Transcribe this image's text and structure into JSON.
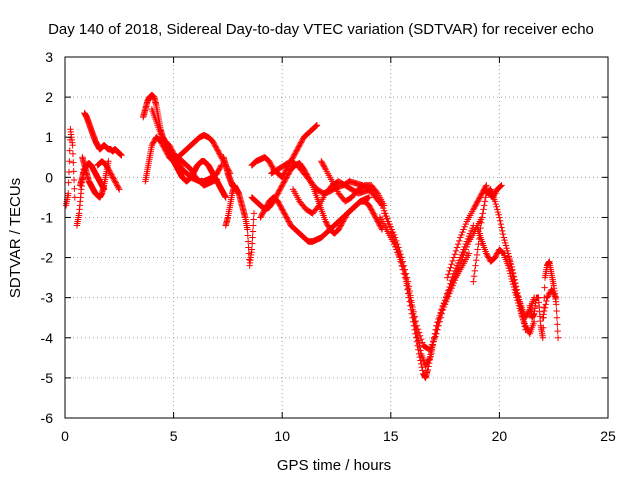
{
  "chart_data": {
    "type": "scatter",
    "title": "Day 140 of 2018, Sidereal Day-to-day VTEC variation (SDTVAR) for receiver echo",
    "xlabel": "GPS time / hours",
    "ylabel": "SDTVAR / TECUs",
    "xlim": [
      0,
      25
    ],
    "ylim": [
      -6,
      3
    ],
    "xticks": [
      0,
      5,
      10,
      15,
      20,
      25
    ],
    "yticks": [
      -6,
      -5,
      -4,
      -3,
      -2,
      -1,
      0,
      1,
      2,
      3
    ],
    "grid": true,
    "marker": "+",
    "color": "#ff0000",
    "series": [
      {
        "name": "SDTVAR",
        "approximate": true,
        "tracks": [
          {
            "x": [
              0.05,
              0.15,
              0.25,
              0.35,
              0.45
            ],
            "y": [
              -0.7,
              -0.4,
              1.2,
              0.8,
              -0.5
            ]
          },
          {
            "x": [
              0.55,
              0.65,
              0.75,
              0.85
            ],
            "y": [
              -1.2,
              -0.9,
              -0.3,
              0.2
            ]
          },
          {
            "x": [
              0.9,
              1.0,
              1.1,
              1.2,
              1.3,
              1.4,
              1.5,
              1.6,
              1.7,
              1.8,
              1.9,
              2.0,
              2.1,
              2.2,
              2.3,
              2.4,
              2.5,
              2.6
            ],
            "y": [
              1.6,
              1.5,
              1.35,
              1.2,
              1.05,
              0.9,
              0.8,
              0.7,
              0.75,
              0.8,
              0.75,
              0.7,
              0.7,
              0.65,
              0.7,
              0.65,
              0.6,
              0.55
            ]
          },
          {
            "x": [
              0.8,
              0.9,
              1.0,
              1.1,
              1.2,
              1.3,
              1.4,
              1.5,
              1.6,
              1.7,
              1.8,
              1.9,
              2.0
            ],
            "y": [
              0.5,
              0.3,
              0.1,
              -0.1,
              -0.2,
              -0.3,
              -0.4,
              -0.45,
              -0.5,
              -0.4,
              -0.2,
              0.1,
              0.4
            ]
          },
          {
            "x": [
              0.7,
              0.8,
              0.9,
              1.0,
              1.1,
              1.2,
              1.3,
              1.4,
              1.5,
              1.6,
              1.7,
              1.8
            ],
            "y": [
              -0.2,
              0.0,
              0.2,
              0.3,
              0.35,
              0.3,
              0.2,
              0.1,
              0.0,
              -0.1,
              -0.2,
              -0.3
            ]
          },
          {
            "x": [
              1.5,
              1.7,
              1.9,
              2.1,
              2.3,
              2.5
            ],
            "y": [
              0.3,
              0.4,
              0.3,
              0.1,
              -0.1,
              -0.3
            ]
          },
          {
            "x": [
              3.6,
              3.7,
              3.8,
              3.9,
              4.0,
              4.1,
              4.2,
              4.3,
              4.4,
              4.5,
              4.6,
              4.7,
              4.8,
              4.9,
              5.0,
              5.1,
              5.2,
              5.3,
              5.4,
              5.5,
              5.6,
              5.7,
              5.8,
              5.9,
              6.0,
              6.1,
              6.2,
              6.3,
              6.4,
              6.5,
              6.6,
              6.7,
              6.8,
              6.9,
              7.0,
              7.1,
              7.2,
              7.3,
              7.4
            ],
            "y": [
              1.5,
              1.7,
              1.9,
              2.0,
              2.05,
              2.0,
              1.8,
              1.5,
              1.2,
              1.0,
              0.9,
              0.7,
              0.6,
              0.5,
              0.4,
              0.3,
              0.2,
              0.1,
              0.0,
              -0.05,
              -0.1,
              -0.05,
              0.0,
              0.1,
              0.2,
              0.3,
              0.35,
              0.4,
              0.4,
              0.35,
              0.3,
              0.2,
              0.1,
              0.0,
              -0.1,
              -0.2,
              -0.3,
              -0.4,
              -0.5
            ]
          },
          {
            "x": [
              3.7,
              3.8,
              3.9,
              4.0,
              4.2,
              4.4,
              4.6,
              4.8,
              5.0,
              5.2,
              5.4,
              5.6,
              5.8,
              6.0,
              6.2,
              6.4,
              6.6,
              6.8,
              7.0,
              7.2,
              7.4,
              7.6
            ],
            "y": [
              -0.1,
              0.2,
              0.5,
              0.8,
              1.0,
              0.9,
              0.7,
              0.5,
              0.4,
              0.5,
              0.6,
              0.7,
              0.8,
              0.9,
              1.0,
              1.05,
              1.0,
              0.9,
              0.7,
              0.5,
              0.3,
              0.1
            ]
          },
          {
            "x": [
              4.6,
              4.8,
              5.0,
              5.2,
              5.4,
              5.6,
              5.8,
              6.0,
              6.2,
              6.4,
              6.6,
              6.8,
              7.0,
              7.2
            ],
            "y": [
              0.9,
              0.8,
              0.6,
              0.4,
              0.2,
              0.1,
              0.0,
              -0.05,
              -0.1,
              -0.1,
              -0.05,
              0.0,
              0.1,
              0.3
            ]
          },
          {
            "x": [
              4.0,
              4.2,
              4.4,
              4.6,
              4.8,
              5.0,
              5.2,
              5.4,
              5.6,
              5.8,
              6.0,
              6.2,
              6.4,
              6.6,
              6.8,
              7.0
            ],
            "y": [
              1.7,
              1.4,
              1.1,
              0.9,
              0.7,
              0.55,
              0.5,
              0.4,
              0.3,
              0.2,
              0.0,
              -0.1,
              -0.2,
              -0.15,
              -0.1,
              -0.05
            ]
          },
          {
            "x": [
              7.4,
              7.5,
              7.6,
              7.7,
              7.8,
              7.9,
              8.0,
              8.1,
              8.2,
              8.3,
              8.4,
              8.5,
              8.6,
              8.7
            ],
            "y": [
              -1.2,
              -1.0,
              -0.7,
              -0.4,
              -0.2,
              -0.3,
              -0.4,
              -0.6,
              -0.8,
              -1.0,
              -1.3,
              -2.2,
              -1.8,
              -0.9
            ]
          },
          {
            "x": [
              7.3,
              7.4,
              7.5,
              7.6,
              7.7,
              7.8
            ],
            "y": [
              0.5,
              0.3,
              0.1,
              -0.05,
              -0.2,
              -0.25
            ]
          },
          {
            "x": [
              8.6,
              8.8,
              9.0,
              9.2,
              9.4,
              9.6,
              9.8,
              10.0,
              10.2,
              10.4,
              10.6,
              10.8,
              11.0,
              11.2,
              11.4,
              11.6
            ],
            "y": [
              0.3,
              0.4,
              0.45,
              0.5,
              0.4,
              0.2,
              0.1,
              0.0,
              0.2,
              0.4,
              0.6,
              0.8,
              1.0,
              1.1,
              1.2,
              1.3
            ]
          },
          {
            "x": [
              8.6,
              8.8,
              9.0,
              9.2,
              9.4,
              9.6,
              9.8,
              10.0,
              10.2,
              10.4,
              10.6,
              10.8,
              11.0,
              11.2,
              11.4,
              11.6,
              11.8,
              12.0,
              12.2,
              12.4,
              12.6,
              12.8,
              13.0,
              13.2,
              13.4,
              13.6,
              13.8,
              14.0
            ],
            "y": [
              -0.5,
              -0.6,
              -0.7,
              -0.8,
              -0.75,
              -0.6,
              -0.4,
              -0.2,
              0.0,
              0.2,
              0.3,
              0.35,
              0.2,
              0.0,
              -0.2,
              -0.5,
              -0.8,
              -1.1,
              -1.3,
              -1.4,
              -1.3,
              -1.1,
              -0.9,
              -0.8,
              -0.7,
              -0.6,
              -0.55,
              -0.5
            ]
          },
          {
            "x": [
              9.0,
              9.2,
              9.4,
              9.6,
              9.8,
              10.0,
              10.2,
              10.4,
              10.6,
              10.8,
              11.0,
              11.2,
              11.4,
              11.6,
              11.8,
              12.0,
              12.2,
              12.4,
              12.6,
              12.8,
              13.0,
              13.2,
              13.4,
              13.6,
              13.8,
              14.0,
              14.2,
              14.4,
              14.6
            ],
            "y": [
              -1.0,
              -0.8,
              -0.6,
              -0.5,
              -0.6,
              -0.8,
              -1.0,
              -1.2,
              -1.3,
              -1.4,
              -1.5,
              -1.6,
              -1.6,
              -1.55,
              -1.5,
              -1.4,
              -1.3,
              -1.2,
              -1.1,
              -1.0,
              -0.9,
              -0.8,
              -0.7,
              -0.6,
              -0.6,
              -0.7,
              -0.9,
              -1.1,
              -1.3
            ]
          },
          {
            "x": [
              9.5,
              9.8,
              10.1,
              10.4,
              10.7,
              11.0,
              11.3,
              11.6,
              11.9,
              12.2,
              12.5,
              12.8,
              13.1,
              13.4,
              13.7,
              14.0,
              14.3,
              14.6
            ],
            "y": [
              0.1,
              0.2,
              0.3,
              0.4,
              0.3,
              0.1,
              -0.1,
              -0.3,
              -0.4,
              -0.35,
              -0.25,
              -0.2,
              -0.1,
              -0.15,
              -0.2,
              -0.3,
              -0.5,
              -0.7
            ]
          },
          {
            "x": [
              11.8,
              12.0,
              12.3,
              12.6,
              12.9,
              13.2,
              13.5,
              13.8,
              14.1,
              14.4,
              14.7
            ],
            "y": [
              0.4,
              0.2,
              -0.1,
              -0.4,
              -0.6,
              -0.5,
              -0.3,
              -0.2,
              -0.2,
              -0.4,
              -0.7
            ]
          },
          {
            "x": [
              10.5,
              10.8,
              11.1,
              11.4,
              11.7,
              12.0,
              12.3,
              12.6,
              12.9,
              13.2,
              13.5,
              13.8,
              14.1
            ],
            "y": [
              -0.3,
              -0.6,
              -0.8,
              -0.9,
              -0.7,
              -0.4,
              -0.2,
              -0.1,
              -0.2,
              -0.3,
              -0.4,
              -0.35,
              -0.3
            ]
          },
          {
            "x": [
              14.5,
              14.8,
              15.1,
              15.4,
              15.7,
              15.9,
              16.1,
              16.3,
              16.5,
              16.6,
              16.7,
              16.9,
              17.1,
              17.4,
              17.7,
              18.0,
              18.3,
              18.6,
              18.9,
              19.2
            ],
            "y": [
              -1.0,
              -1.3,
              -1.6,
              -2.0,
              -2.6,
              -3.2,
              -3.8,
              -4.4,
              -4.9,
              -5.0,
              -4.8,
              -4.3,
              -3.7,
              -3.2,
              -2.8,
              -2.4,
              -2.0,
              -1.6,
              -1.3,
              -1.0
            ]
          },
          {
            "x": [
              14.6,
              14.9,
              15.2,
              15.5,
              15.8,
              16.0,
              16.2,
              16.4,
              16.6,
              16.8,
              17.0,
              17.3,
              17.6,
              17.9,
              18.2,
              18.5,
              18.8
            ],
            "y": [
              -0.7,
              -1.1,
              -1.5,
              -2.0,
              -2.6,
              -3.3,
              -3.9,
              -4.4,
              -4.7,
              -4.5,
              -4.0,
              -3.4,
              -2.9,
              -2.4,
              -2.0,
              -1.6,
              -1.2
            ]
          },
          {
            "x": [
              14.7,
              15.0,
              15.3,
              15.6,
              15.9,
              16.2,
              16.5,
              16.8,
              17.1,
              17.4,
              17.7,
              18.0,
              18.3,
              18.6
            ],
            "y": [
              -0.9,
              -1.3,
              -1.8,
              -2.3,
              -3.0,
              -3.7,
              -4.2,
              -4.3,
              -3.9,
              -3.3,
              -2.9,
              -2.5,
              -2.2,
              -1.9
            ]
          },
          {
            "x": [
              17.6,
              17.9,
              18.2,
              18.5,
              18.8,
              19.0,
              19.2,
              19.4
            ],
            "y": [
              -2.5,
              -2.0,
              -1.5,
              -1.1,
              -0.8,
              -0.6,
              -0.4,
              -0.2
            ]
          },
          {
            "x": [
              18.8,
              19.0,
              19.2,
              19.4,
              19.6,
              19.8,
              20.0,
              20.2,
              20.4,
              20.6,
              20.8,
              21.0,
              21.2
            ],
            "y": [
              -2.6,
              -1.8,
              -1.0,
              -0.4,
              -0.3,
              -0.6,
              -1.0,
              -1.5,
              -1.9,
              -2.3,
              -2.8,
              -3.3,
              -3.8
            ]
          },
          {
            "x": [
              19.0,
              19.2,
              19.4,
              19.6,
              19.8,
              20.0,
              20.2,
              20.4,
              20.6,
              20.8,
              21.0,
              21.2,
              21.4,
              21.6
            ],
            "y": [
              -1.3,
              -1.6,
              -1.9,
              -2.1,
              -2.0,
              -1.8,
              -1.9,
              -2.2,
              -2.6,
              -3.0,
              -3.4,
              -3.7,
              -3.9,
              -3.6
            ]
          },
          {
            "x": [
              19.3,
              19.5,
              19.7,
              19.9,
              20.1
            ],
            "y": [
              -0.3,
              -0.4,
              -0.5,
              -0.3,
              -0.2
            ]
          },
          {
            "x": [
              20.4,
              20.6,
              20.8,
              21.0,
              21.2,
              21.4,
              21.6
            ],
            "y": [
              -1.9,
              -2.4,
              -2.9,
              -3.2,
              -3.5,
              -3.3,
              -3.0
            ]
          },
          {
            "x": [
              21.4,
              21.5,
              21.6,
              21.7,
              21.8,
              21.9,
              22.0,
              22.1,
              22.2,
              22.3,
              22.4,
              22.5,
              22.6
            ],
            "y": [
              -3.2,
              -3.5,
              -3.4,
              -3.0,
              -3.0,
              -3.7,
              -4.0,
              -2.5,
              -2.2,
              -2.1,
              -2.4,
              -2.7,
              -3.1
            ]
          },
          {
            "x": [
              22.0,
              22.2,
              22.4,
              22.6,
              22.7
            ],
            "y": [
              -3.5,
              -3.0,
              -2.8,
              -3.0,
              -4.0
            ]
          }
        ]
      }
    ]
  }
}
